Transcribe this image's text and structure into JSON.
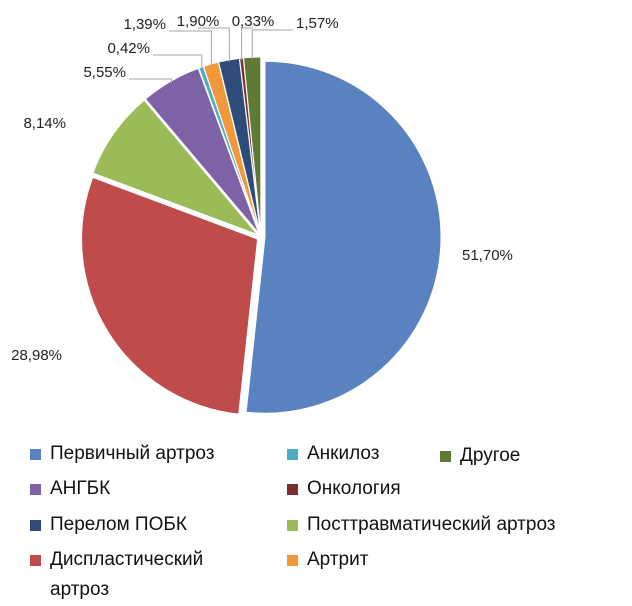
{
  "chart_data": {
    "type": "pie",
    "title": "",
    "slices": [
      {
        "label": "Первичный артроз",
        "value": 51.7,
        "value_label": "51,70%",
        "color": "#5b82c0"
      },
      {
        "label": "Диспластический артроз",
        "value": 28.98,
        "value_label": "28,98%",
        "color": "#bf4b4b"
      },
      {
        "label": "Посттравматический артроз",
        "value": 8.14,
        "value_label": "8,14%",
        "color": "#9bbb59"
      },
      {
        "label": "АНГБК",
        "value": 5.55,
        "value_label": "5,55%",
        "color": "#7e62a6"
      },
      {
        "label": "Анкилоз",
        "value": 0.42,
        "value_label": "0,42%",
        "color": "#4bacc6"
      },
      {
        "label": "Артрит",
        "value": 1.39,
        "value_label": "1,39%",
        "color": "#f0983a"
      },
      {
        "label": "Перелом ПОБК",
        "value": 1.9,
        "value_label": "1,90%",
        "color": "#2e4b7a"
      },
      {
        "label": "Онкология",
        "value": 0.33,
        "value_label": "0,33%",
        "color": "#772e2c"
      },
      {
        "label": "Другое",
        "value": 1.57,
        "value_label": "1,57%",
        "color": "#5f7a35"
      }
    ],
    "legend": {
      "placement": "bottom",
      "columns": [
        [
          "Первичный артроз",
          "АНГБК",
          "Перелом ПОБК",
          "Диспластический артроз"
        ],
        [
          "Анкилоз",
          "Онкология",
          "Посттравматический артроз",
          "Артрит"
        ],
        [
          "Другое"
        ]
      ]
    }
  }
}
